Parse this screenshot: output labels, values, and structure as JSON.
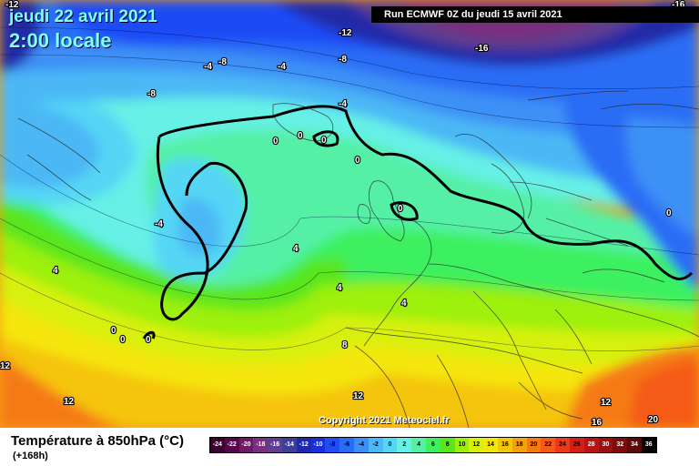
{
  "header": {
    "date": "jeudi 22 avril 2021",
    "local_time": "2:00 locale",
    "run_info": "Run ECMWF 0Z du jeudi 15 avril 2021"
  },
  "footer": {
    "variable_title": "Température à 850hPa (°C)",
    "lead_time": "(+168h)",
    "copyright": "Copyright 2021 Meteociel.fr"
  },
  "legend": [
    {
      "label": "-24",
      "color": "#3a0030"
    },
    {
      "label": "-22",
      "color": "#55064a"
    },
    {
      "label": "-20",
      "color": "#6e1866"
    },
    {
      "label": "-18",
      "color": "#7a2f7e"
    },
    {
      "label": "-16",
      "color": "#5e3e8e"
    },
    {
      "label": "-14",
      "color": "#3c3f94"
    },
    {
      "label": "-12",
      "color": "#202aa8"
    },
    {
      "label": "-10",
      "color": "#1830d8"
    },
    {
      "label": "-8",
      "color": "#1e4cf5"
    },
    {
      "label": "-6",
      "color": "#2a6df5"
    },
    {
      "label": "-4",
      "color": "#3c90f5"
    },
    {
      "label": "-2",
      "color": "#4cb8f5"
    },
    {
      "label": "0",
      "color": "#55d6f5"
    },
    {
      "label": "2",
      "color": "#66f0e6"
    },
    {
      "label": "4",
      "color": "#55f0a6"
    },
    {
      "label": "6",
      "color": "#3cf05e"
    },
    {
      "label": "8",
      "color": "#5ae61e"
    },
    {
      "label": "10",
      "color": "#9ef00c"
    },
    {
      "label": "12",
      "color": "#d8f00a"
    },
    {
      "label": "14",
      "color": "#f5e60a"
    },
    {
      "label": "16",
      "color": "#f5c40c"
    },
    {
      "label": "18",
      "color": "#f5a00e"
    },
    {
      "label": "20",
      "color": "#f57a12"
    },
    {
      "label": "22",
      "color": "#f55a16"
    },
    {
      "label": "24",
      "color": "#ea3a1a"
    },
    {
      "label": "26",
      "color": "#d22018"
    },
    {
      "label": "28",
      "color": "#b81414"
    },
    {
      "label": "30",
      "color": "#9a1010"
    },
    {
      "label": "32",
      "color": "#7a0c0c"
    },
    {
      "label": "34",
      "color": "#5a0808"
    },
    {
      "label": "36",
      "color": "#000000"
    }
  ],
  "contour_labels": [
    "-12",
    "-16",
    "-12",
    "-16",
    "-4",
    "-8",
    "-4",
    "-8",
    "-4",
    "-8",
    "0",
    "0",
    "0",
    "0",
    "0",
    "-4",
    "4",
    "4",
    "4",
    "0",
    "0",
    "0",
    "4",
    "8",
    "12",
    "12",
    "12",
    "12",
    "16",
    "20",
    "0"
  ]
}
